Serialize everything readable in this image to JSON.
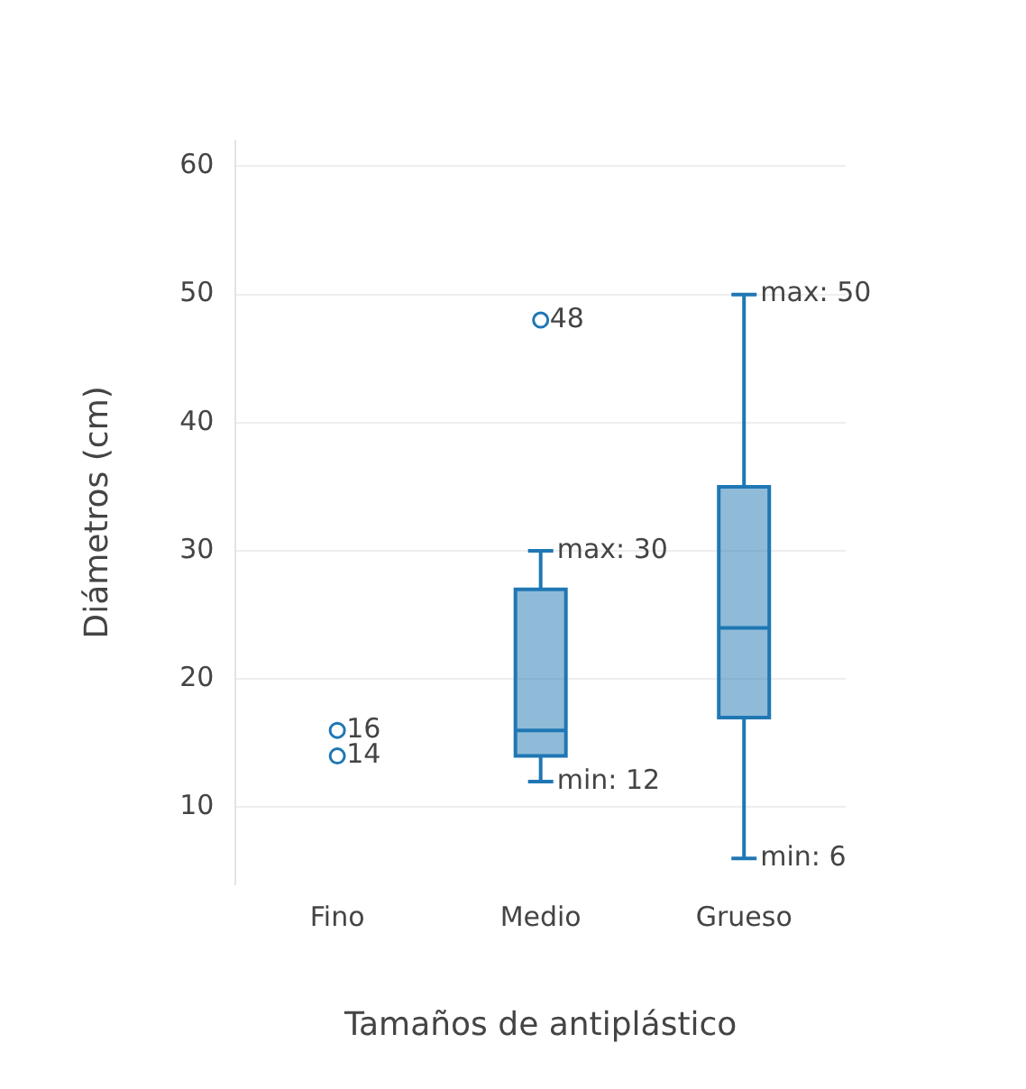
{
  "chart_data": {
    "type": "box",
    "xlabel": "Tamaños de antiplástico",
    "ylabel": "Diámetros (cm)",
    "categories": [
      "Fino",
      "Medio",
      "Grueso"
    ],
    "color": "#1f77b4",
    "boxes": [
      null,
      {
        "low": 12,
        "q1": 14,
        "median": 16,
        "q3": 27,
        "high": 30
      },
      {
        "low": 6,
        "q1": 17,
        "median": 24,
        "q3": 35,
        "high": 50
      }
    ],
    "series": [
      {
        "type": "scatter",
        "color": "#1f77b4",
        "x": [
          "Fino",
          "Fino",
          "Medio"
        ],
        "values": [
          16,
          14,
          48
        ],
        "value_labels": [
          "16",
          "14",
          "48"
        ]
      }
    ],
    "annotations": [
      {
        "text": "max: 30",
        "x": "Medio",
        "y": 30
      },
      {
        "text": "min: 12",
        "x": "Medio",
        "y": 12
      },
      {
        "text": "max: 50",
        "x": "Grueso",
        "y": 50
      },
      {
        "text": "min: 6",
        "x": "Grueso",
        "y": 6
      }
    ],
    "ylim": [
      4,
      62
    ],
    "yticks": [
      10,
      20,
      30,
      40,
      50,
      60
    ],
    "grid": "y",
    "marker": "circle",
    "legend": false
  }
}
